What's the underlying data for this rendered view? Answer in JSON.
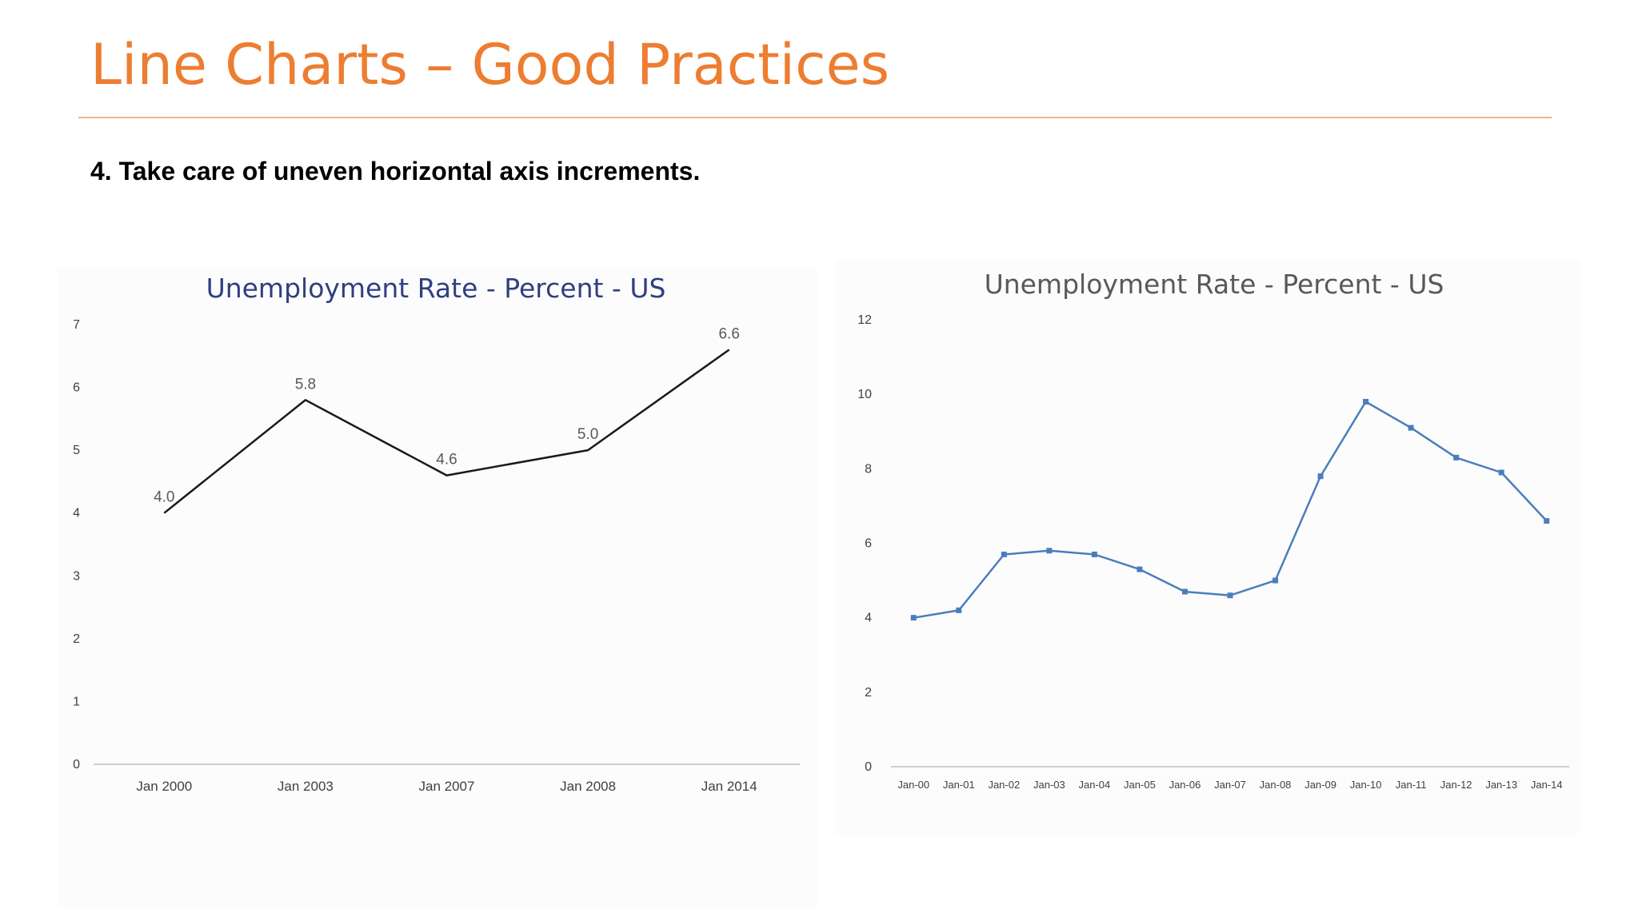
{
  "slide": {
    "title": "Line Charts – Good Practices",
    "subtitle": "4. Take care of uneven horizontal axis increments.",
    "accent_color": "#ED7D31"
  },
  "chart_data": [
    {
      "type": "line",
      "title": "Unemployment Rate - Percent - US",
      "categories": [
        "Jan 2000",
        "Jan 2003",
        "Jan 2007",
        "Jan 2008",
        "Jan 2014"
      ],
      "values": [
        4.0,
        5.8,
        4.6,
        5.0,
        6.6
      ],
      "data_labels": [
        "4.0",
        "5.8",
        "4.6",
        "5.0",
        "6.6"
      ],
      "ylim": [
        0,
        7
      ],
      "yticks": [
        "0",
        "1",
        "2",
        "3",
        "4",
        "5",
        "6",
        "7"
      ],
      "xlabel": "",
      "ylabel": "",
      "grid": false,
      "markers": false,
      "line_color": "#1a1a1a",
      "title_color": "#2F3F7F"
    },
    {
      "type": "line",
      "title": "Unemployment Rate - Percent - US",
      "categories": [
        "Jan-00",
        "Jan-01",
        "Jan-02",
        "Jan-03",
        "Jan-04",
        "Jan-05",
        "Jan-06",
        "Jan-07",
        "Jan-08",
        "Jan-09",
        "Jan-10",
        "Jan-11",
        "Jan-12",
        "Jan-13",
        "Jan-14"
      ],
      "values": [
        4.0,
        4.2,
        5.7,
        5.8,
        5.7,
        5.3,
        4.7,
        4.6,
        5.0,
        7.8,
        9.8,
        9.1,
        8.3,
        7.9,
        6.6
      ],
      "ylim": [
        0,
        12
      ],
      "yticks": [
        "0",
        "2",
        "4",
        "6",
        "8",
        "10",
        "12"
      ],
      "xlabel": "",
      "ylabel": "",
      "grid": false,
      "markers": true,
      "line_color": "#4A7EBB",
      "title_color": "#595959"
    }
  ]
}
